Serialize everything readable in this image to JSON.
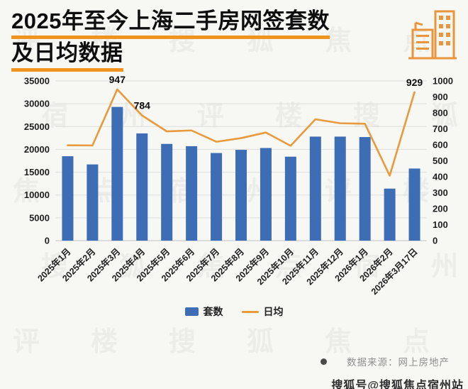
{
  "header": {
    "title_line1": "2025年至今上海二手房网签套数",
    "title_line2": "及日均数据"
  },
  "chart_data": {
    "type": "bar+line",
    "title": "2025年至今上海二手房网签套数及日均数据",
    "categories": [
      "2025年1月",
      "2025年2月",
      "2025年3月",
      "2025年4月",
      "2025年5月",
      "2025年6月",
      "2025年7月",
      "2025年8月",
      "2025年9月",
      "2025年10月",
      "2025年11月",
      "2025年12月",
      "2026年1月",
      "2026年2月",
      "2026年3月17日"
    ],
    "series": [
      {
        "name": "套数",
        "type": "bar",
        "axis": "left",
        "color": "#3D6DB5",
        "values": [
          18500,
          16700,
          29300,
          23500,
          21200,
          20700,
          19200,
          19900,
          20300,
          18400,
          22800,
          22800,
          22700,
          11400,
          15800
        ]
      },
      {
        "name": "日均",
        "type": "line",
        "axis": "right",
        "color": "#E89A3C",
        "values": [
          597,
          596,
          947,
          784,
          684,
          690,
          619,
          642,
          677,
          594,
          760,
          735,
          732,
          407,
          929
        ]
      }
    ],
    "point_labels": [
      {
        "series": "日均",
        "index": 2,
        "text": "947"
      },
      {
        "series": "日均",
        "index": 3,
        "text": "784"
      },
      {
        "series": "日均",
        "index": 14,
        "text": "929"
      }
    ],
    "left_axis": {
      "min": 0,
      "max": 35000,
      "step": 5000
    },
    "right_axis": {
      "min": 0,
      "max": 1000,
      "step": 100
    },
    "grid": true,
    "legend_position": "bottom"
  },
  "legend": {
    "bar_label": "套数",
    "line_label": "日均"
  },
  "footer": {
    "source_label": "数据来源：网上房地产",
    "watermark_account": "搜狐号@搜狐焦点宿州站"
  },
  "watermark": {
    "chars": "评楼搜狐焦点宿州"
  },
  "colors": {
    "bar": "#3D6DB5",
    "line": "#E89A3C",
    "accent_underline": "#F0941F",
    "background": "#f7f7f3"
  }
}
